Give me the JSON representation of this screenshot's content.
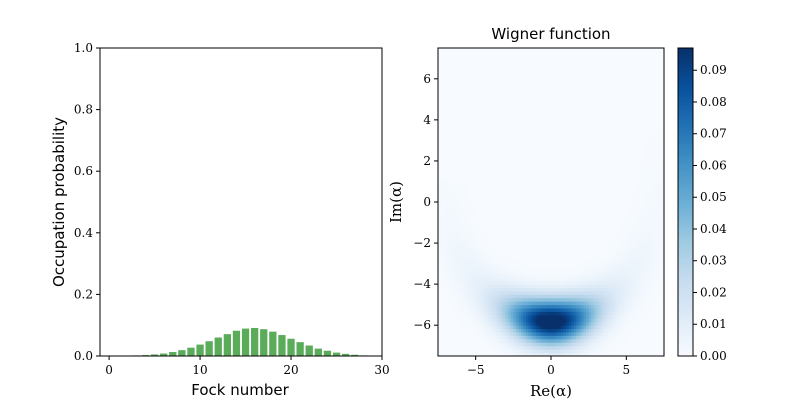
{
  "chart_data": [
    {
      "type": "bar",
      "xlabel": "Fock number",
      "ylabel": "Occupation probability",
      "xlim": [
        -1,
        30
      ],
      "ylim": [
        0,
        1.0
      ],
      "xticks": [
        0,
        10,
        20,
        30
      ],
      "yticks": [
        0.0,
        0.2,
        0.4,
        0.6,
        0.8,
        1.0
      ],
      "ytick_labels": [
        "0.0",
        "0.2",
        "0.4",
        "0.6",
        "0.8",
        "1.0"
      ],
      "bar_color": "#5aab5a",
      "x": [
        0,
        1,
        2,
        3,
        4,
        5,
        6,
        7,
        8,
        9,
        10,
        11,
        12,
        13,
        14,
        15,
        16,
        17,
        18,
        19,
        20,
        21,
        22,
        23,
        24,
        25,
        26,
        27,
        28,
        29
      ],
      "values": [
        0.0,
        0.0003,
        0.001,
        0.002,
        0.003,
        0.005,
        0.008,
        0.013,
        0.019,
        0.027,
        0.037,
        0.048,
        0.06,
        0.071,
        0.082,
        0.089,
        0.091,
        0.087,
        0.079,
        0.068,
        0.056,
        0.045,
        0.034,
        0.024,
        0.017,
        0.011,
        0.007,
        0.004,
        0.002,
        0.0
      ]
    },
    {
      "type": "heatmap",
      "title": "Wigner function",
      "xlabel": "Re(α)",
      "ylabel": "Im(α)",
      "xlim": [
        -7.5,
        7.5
      ],
      "ylim": [
        -7.5,
        7.5
      ],
      "xticks": [
        -5,
        0,
        5
      ],
      "xtick_labels": [
        "−5",
        "0",
        "5"
      ],
      "yticks": [
        -6,
        -4,
        -2,
        0,
        2,
        4,
        6
      ],
      "ytick_labels": [
        "−6",
        "−4",
        "−2",
        "0",
        "2",
        "4",
        "6"
      ],
      "colormap": "Blues",
      "colorbar": {
        "min": 0.0,
        "max": 0.097,
        "ticks": [
          0.0,
          0.01,
          0.02,
          0.03,
          0.04,
          0.05,
          0.06,
          0.07,
          0.08,
          0.09
        ],
        "tick_labels": [
          "0.00",
          "0.01",
          "0.02",
          "0.03",
          "0.04",
          "0.05",
          "0.06",
          "0.07",
          "0.08",
          "0.09"
        ]
      },
      "peak": {
        "re": 0.0,
        "im": -5.8,
        "value": 0.097
      }
    }
  ]
}
